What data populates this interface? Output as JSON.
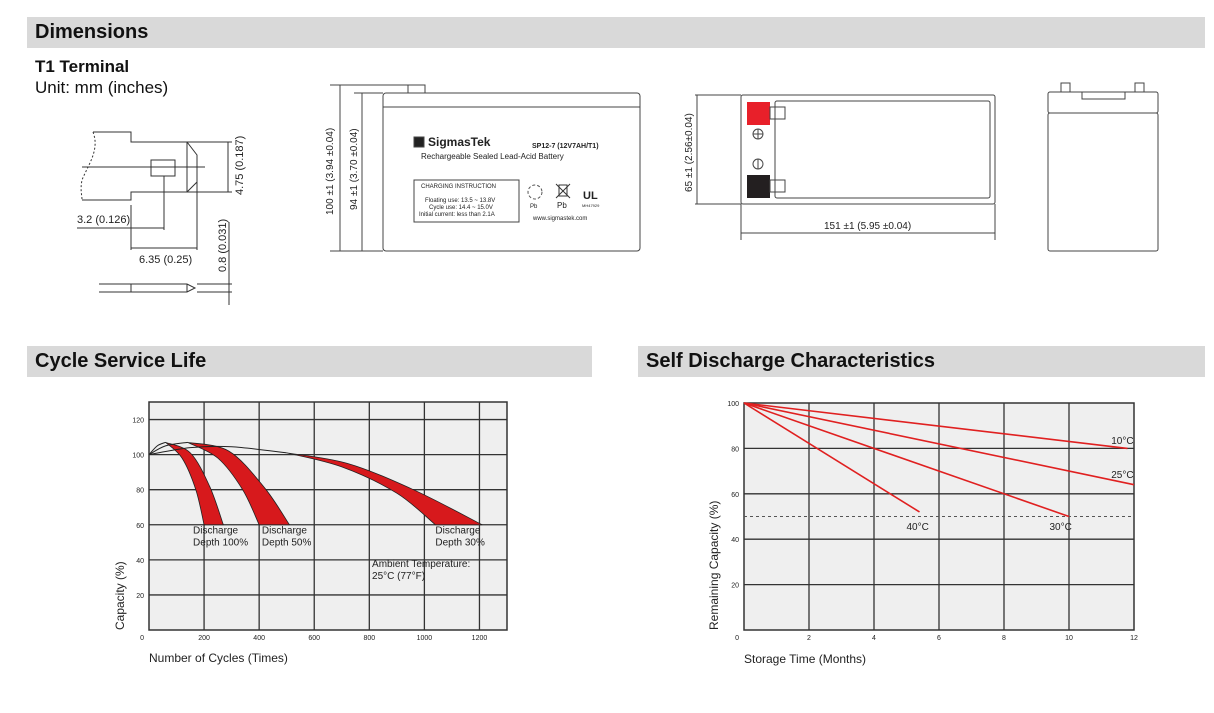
{
  "sections": {
    "dimensions": "Dimensions",
    "cycle": "Cycle Service Life",
    "self_discharge": "Self Discharge Characteristics"
  },
  "terminal": {
    "title": "T1 Terminal",
    "unit": "Unit: mm (inches)",
    "dim_height": "4.75 (0.187)",
    "dim_hole": "3.2 (0.126)",
    "dim_width": "6.35 (0.25)",
    "dim_thickness": "0.8 (0.031)"
  },
  "front_view": {
    "dim_total_height": "100 ±1 (3.94 ±0.04)",
    "dim_case_height": "94 ±1 (3.70 ±0.04)",
    "brand": "SigmasTek",
    "model": "SP12-7 (12V7AH/T1)",
    "description": "Rechargeable Sealed Lead-Acid Battery",
    "charging_title": "CHARGING INSTRUCTION",
    "charging_lines": [
      "Floating use: 13.5 ~ 13.8V",
      "Cycle use: 14.4 ~ 15.0V",
      "Initial current: less than 2.1A"
    ],
    "pb1": "Pb",
    "pb2": "Pb",
    "ul_code": "MH47929",
    "website": "www.sigmastek.com"
  },
  "top_view": {
    "dim_width": "65 ±1 (2.56±0.04)",
    "dim_length": "151 ±1 (5.95 ±0.04)",
    "positive_color": "#e8202a",
    "negative_color": "#231f20"
  },
  "chart_data": [
    {
      "type": "area",
      "title": "",
      "xlabel": "Number of Cycles (Times)",
      "ylabel": "Capacity (%)",
      "xlim": [
        0,
        1300
      ],
      "ylim": [
        0,
        130
      ],
      "xticks": [
        200,
        400,
        600,
        800,
        1000,
        1200
      ],
      "yticks": [
        0,
        20,
        40,
        60,
        80,
        100,
        120
      ],
      "grid": true,
      "band_color": "#d7191c",
      "series": [
        {
          "name": "Discharge Depth 100%",
          "lead": [
            [
              0,
              100
            ],
            [
              30,
              105
            ],
            [
              60,
              107
            ]
          ],
          "inner": [
            [
              60,
              107
            ],
            [
              120,
              98
            ],
            [
              170,
              80
            ],
            [
              200,
              60
            ]
          ],
          "outer": [
            [
              60,
              107
            ],
            [
              150,
              101
            ],
            [
              220,
              82
            ],
            [
              270,
              60
            ]
          ]
        },
        {
          "name": "Discharge Depth 50%",
          "lead": [
            [
              0,
              100
            ],
            [
              60,
              105
            ],
            [
              140,
              107
            ]
          ],
          "inner": [
            [
              140,
              107
            ],
            [
              250,
              98
            ],
            [
              340,
              80
            ],
            [
              400,
              60
            ]
          ],
          "outer": [
            [
              140,
              107
            ],
            [
              290,
              102
            ],
            [
              420,
              81
            ],
            [
              510,
              60
            ]
          ]
        },
        {
          "name": "Discharge Depth 30%",
          "lead": [
            [
              0,
              100
            ],
            [
              150,
              104
            ],
            [
              300,
              104.5
            ],
            [
              500,
              101
            ]
          ],
          "inner": [
            [
              500,
              101
            ],
            [
              700,
              93
            ],
            [
              900,
              78
            ],
            [
              1040,
              60
            ]
          ],
          "outer": [
            [
              500,
              101
            ],
            [
              720,
              95
            ],
            [
              960,
              80
            ],
            [
              1210,
              60
            ]
          ]
        }
      ],
      "labels": [
        {
          "lines": [
            "Discharge",
            "Depth 100%"
          ],
          "at": [
            160,
            55
          ]
        },
        {
          "lines": [
            "Discharge",
            "Depth 50%"
          ],
          "at": [
            410,
            55
          ]
        },
        {
          "lines": [
            "Discharge",
            "Depth 30%"
          ],
          "at": [
            1040,
            55
          ]
        },
        {
          "lines": [
            "Ambient Temperature:",
            "25°C (77°F)"
          ],
          "at": [
            810,
            36
          ]
        }
      ]
    },
    {
      "type": "line",
      "title": "",
      "xlabel": "Storage Time (Months)",
      "ylabel": "Remaining Capacity (%)",
      "xlim": [
        0,
        12
      ],
      "ylim": [
        0,
        100
      ],
      "xticks": [
        0,
        2,
        4,
        6,
        8,
        10,
        12
      ],
      "yticks": [
        0,
        20,
        40,
        60,
        80,
        100
      ],
      "grid": true,
      "reference_line": 50,
      "line_color": "#e02020",
      "series": [
        {
          "name": "10°C",
          "points": [
            [
              0,
              100
            ],
            [
              11.8,
              80
            ]
          ],
          "label_at": [
            11.3,
            82
          ]
        },
        {
          "name": "25°C",
          "points": [
            [
              0,
              100
            ],
            [
              12,
              64
            ]
          ],
          "label_at": [
            11.3,
            67
          ]
        },
        {
          "name": "30°C",
          "points": [
            [
              0,
              100
            ],
            [
              10,
              50
            ]
          ],
          "label_at": [
            9.4,
            44
          ]
        },
        {
          "name": "40°C",
          "points": [
            [
              0,
              100
            ],
            [
              5.4,
              52
            ]
          ],
          "label_at": [
            5.0,
            44
          ]
        }
      ]
    }
  ]
}
